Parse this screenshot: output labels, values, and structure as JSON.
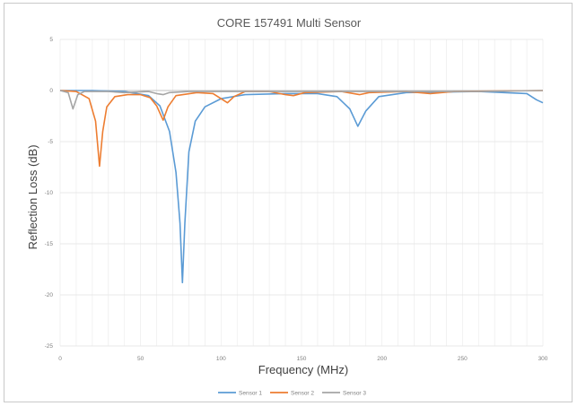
{
  "chart_data": {
    "type": "line",
    "title": "CORE 157491 Multi Sensor",
    "xlabel": "Frequency (MHz)",
    "ylabel": "Reflection Loss (dB)",
    "xlim": [
      0,
      300
    ],
    "ylim": [
      -25,
      5
    ],
    "x_ticks": [
      0,
      50,
      100,
      150,
      200,
      250,
      300
    ],
    "y_ticks": [
      5,
      0,
      -5,
      -10,
      -15,
      -20,
      -25
    ],
    "grid": true,
    "legend_position": "bottom",
    "series": [
      {
        "name": "Sensor 1",
        "color": "#5B9BD5",
        "points": [
          [
            0,
            0
          ],
          [
            20,
            0
          ],
          [
            40,
            -0.1
          ],
          [
            55,
            -0.5
          ],
          [
            62,
            -1.5
          ],
          [
            68,
            -4
          ],
          [
            72,
            -8
          ],
          [
            74.5,
            -13
          ],
          [
            76,
            -18.8
          ],
          [
            77.5,
            -13
          ],
          [
            80,
            -6
          ],
          [
            84,
            -3
          ],
          [
            90,
            -1.6
          ],
          [
            100,
            -0.8
          ],
          [
            115,
            -0.4
          ],
          [
            140,
            -0.3
          ],
          [
            160,
            -0.3
          ],
          [
            172,
            -0.6
          ],
          [
            180,
            -1.8
          ],
          [
            185,
            -3.5
          ],
          [
            190,
            -2
          ],
          [
            198,
            -0.6
          ],
          [
            215,
            -0.2
          ],
          [
            260,
            -0.1
          ],
          [
            290,
            -0.3
          ],
          [
            296,
            -0.9
          ],
          [
            300,
            -1.2
          ]
        ]
      },
      {
        "name": "Sensor 2",
        "color": "#ED7D31",
        "points": [
          [
            0,
            0
          ],
          [
            10,
            -0.1
          ],
          [
            18,
            -0.8
          ],
          [
            22,
            -3
          ],
          [
            24.5,
            -7.4
          ],
          [
            26.5,
            -4
          ],
          [
            29,
            -1.6
          ],
          [
            34,
            -0.6
          ],
          [
            42,
            -0.4
          ],
          [
            50,
            -0.4
          ],
          [
            56,
            -0.7
          ],
          [
            60,
            -1.5
          ],
          [
            64,
            -2.9
          ],
          [
            67,
            -1.6
          ],
          [
            72,
            -0.5
          ],
          [
            85,
            -0.2
          ],
          [
            95,
            -0.3
          ],
          [
            100,
            -0.8
          ],
          [
            104,
            -1.2
          ],
          [
            108,
            -0.6
          ],
          [
            115,
            -0.1
          ],
          [
            130,
            -0.1
          ],
          [
            140,
            -0.4
          ],
          [
            145,
            -0.5
          ],
          [
            152,
            -0.2
          ],
          [
            175,
            -0.1
          ],
          [
            186,
            -0.4
          ],
          [
            192,
            -0.2
          ],
          [
            215,
            -0.1
          ],
          [
            230,
            -0.3
          ],
          [
            245,
            -0.1
          ],
          [
            300,
            0
          ]
        ]
      },
      {
        "name": "Sensor 3",
        "color": "#A5A5A5",
        "points": [
          [
            0,
            0
          ],
          [
            5,
            -0.2
          ],
          [
            8,
            -1.8
          ],
          [
            11,
            -0.4
          ],
          [
            15,
            -0.1
          ],
          [
            30,
            -0.1
          ],
          [
            40,
            -0.2
          ],
          [
            55,
            -0.1
          ],
          [
            60,
            -0.3
          ],
          [
            64,
            -0.4
          ],
          [
            68,
            -0.2
          ],
          [
            80,
            -0.1
          ],
          [
            100,
            -0.1
          ],
          [
            140,
            -0.1
          ],
          [
            185,
            -0.1
          ],
          [
            260,
            -0.1
          ],
          [
            300,
            0
          ]
        ]
      }
    ]
  }
}
